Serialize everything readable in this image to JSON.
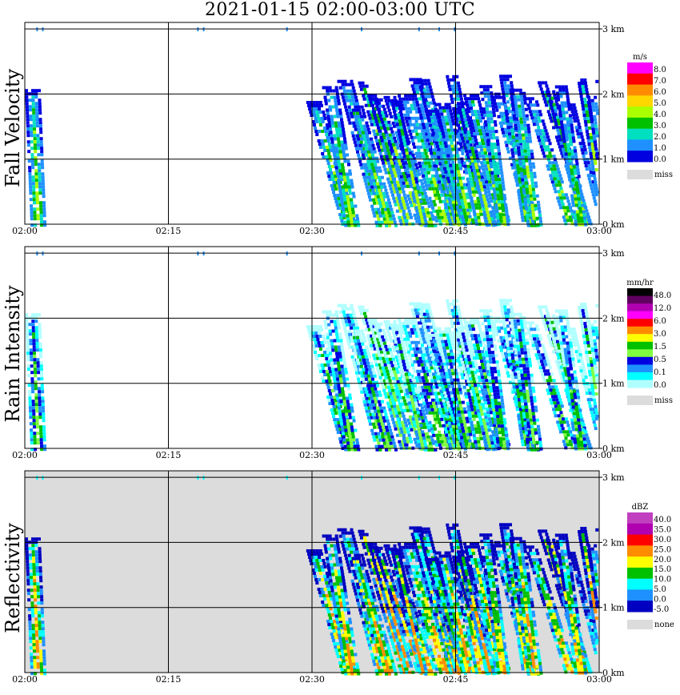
{
  "title": "2021-01-15   02:00-03:00 UTC",
  "chart_data": [
    {
      "type": "heatmap",
      "title": "Fall Velocity",
      "unit": "m/s",
      "x_ticks": [
        "02:00",
        "02:15",
        "02:30",
        "02:45",
        "03:00"
      ],
      "y_ticks": [
        "0 km",
        "1 km",
        "2 km",
        "3 km"
      ],
      "ylim": [
        0,
        3.0
      ],
      "legend": [
        "8.0",
        "7.0",
        "6.0",
        "5.0",
        "4.0",
        "3.0",
        "2.0",
        "1.0",
        "0.0"
      ],
      "legend_colors": [
        "#ff00ff",
        "#ff0000",
        "#ff8c00",
        "#ffd700",
        "#aaff00",
        "#00c000",
        "#00e0c0",
        "#1e90ff",
        "#0000e0"
      ],
      "missing_label": "miss",
      "missing_color": "#dcdcdc",
      "background": "#ffffff"
    },
    {
      "type": "heatmap",
      "title": "Rain Intensity",
      "unit": "mm/hr",
      "x_ticks": [
        "02:00",
        "02:15",
        "02:30",
        "02:45",
        "03:00"
      ],
      "y_ticks": [
        "0 km",
        "1 km",
        "2 km",
        "3 km"
      ],
      "ylim": [
        0,
        3.0
      ],
      "legend": [
        "48.0",
        "12.0",
        "6.0",
        "3.0",
        "1.5",
        "0.5",
        "0.1",
        "0.0"
      ],
      "legend_colors": [
        "#000000",
        "#600060",
        "#b000b0",
        "#ff00ff",
        "#ff0000",
        "#ff8c00",
        "#ffff00",
        "#00c000",
        "#80ff40",
        "#0000e0",
        "#1e90ff",
        "#00ffff",
        "#b0ffff"
      ],
      "missing_label": "miss",
      "missing_color": "#dcdcdc",
      "background": "#ffffff"
    },
    {
      "type": "heatmap",
      "title": "Reflectivity",
      "unit": "dBZ",
      "x_ticks": [
        "02:00",
        "02:15",
        "02:30",
        "02:45",
        "03:00"
      ],
      "y_ticks": [
        "0 km",
        "1 km",
        "2 km",
        "3 km"
      ],
      "ylim": [
        0,
        3.0
      ],
      "legend": [
        "40.0",
        "35.0",
        "30.0",
        "25.0",
        "20.0",
        "15.0",
        "10.0",
        "5.0",
        "0.0",
        "-5.0"
      ],
      "legend_colors": [
        "#c040c0",
        "#b000b0",
        "#ff0000",
        "#ff8c00",
        "#ffff00",
        "#00c000",
        "#00ffff",
        "#1e90ff",
        "#0000c0"
      ],
      "missing_label": "none",
      "missing_color": "#dcdcdc",
      "background": "#dcdcdc"
    }
  ]
}
